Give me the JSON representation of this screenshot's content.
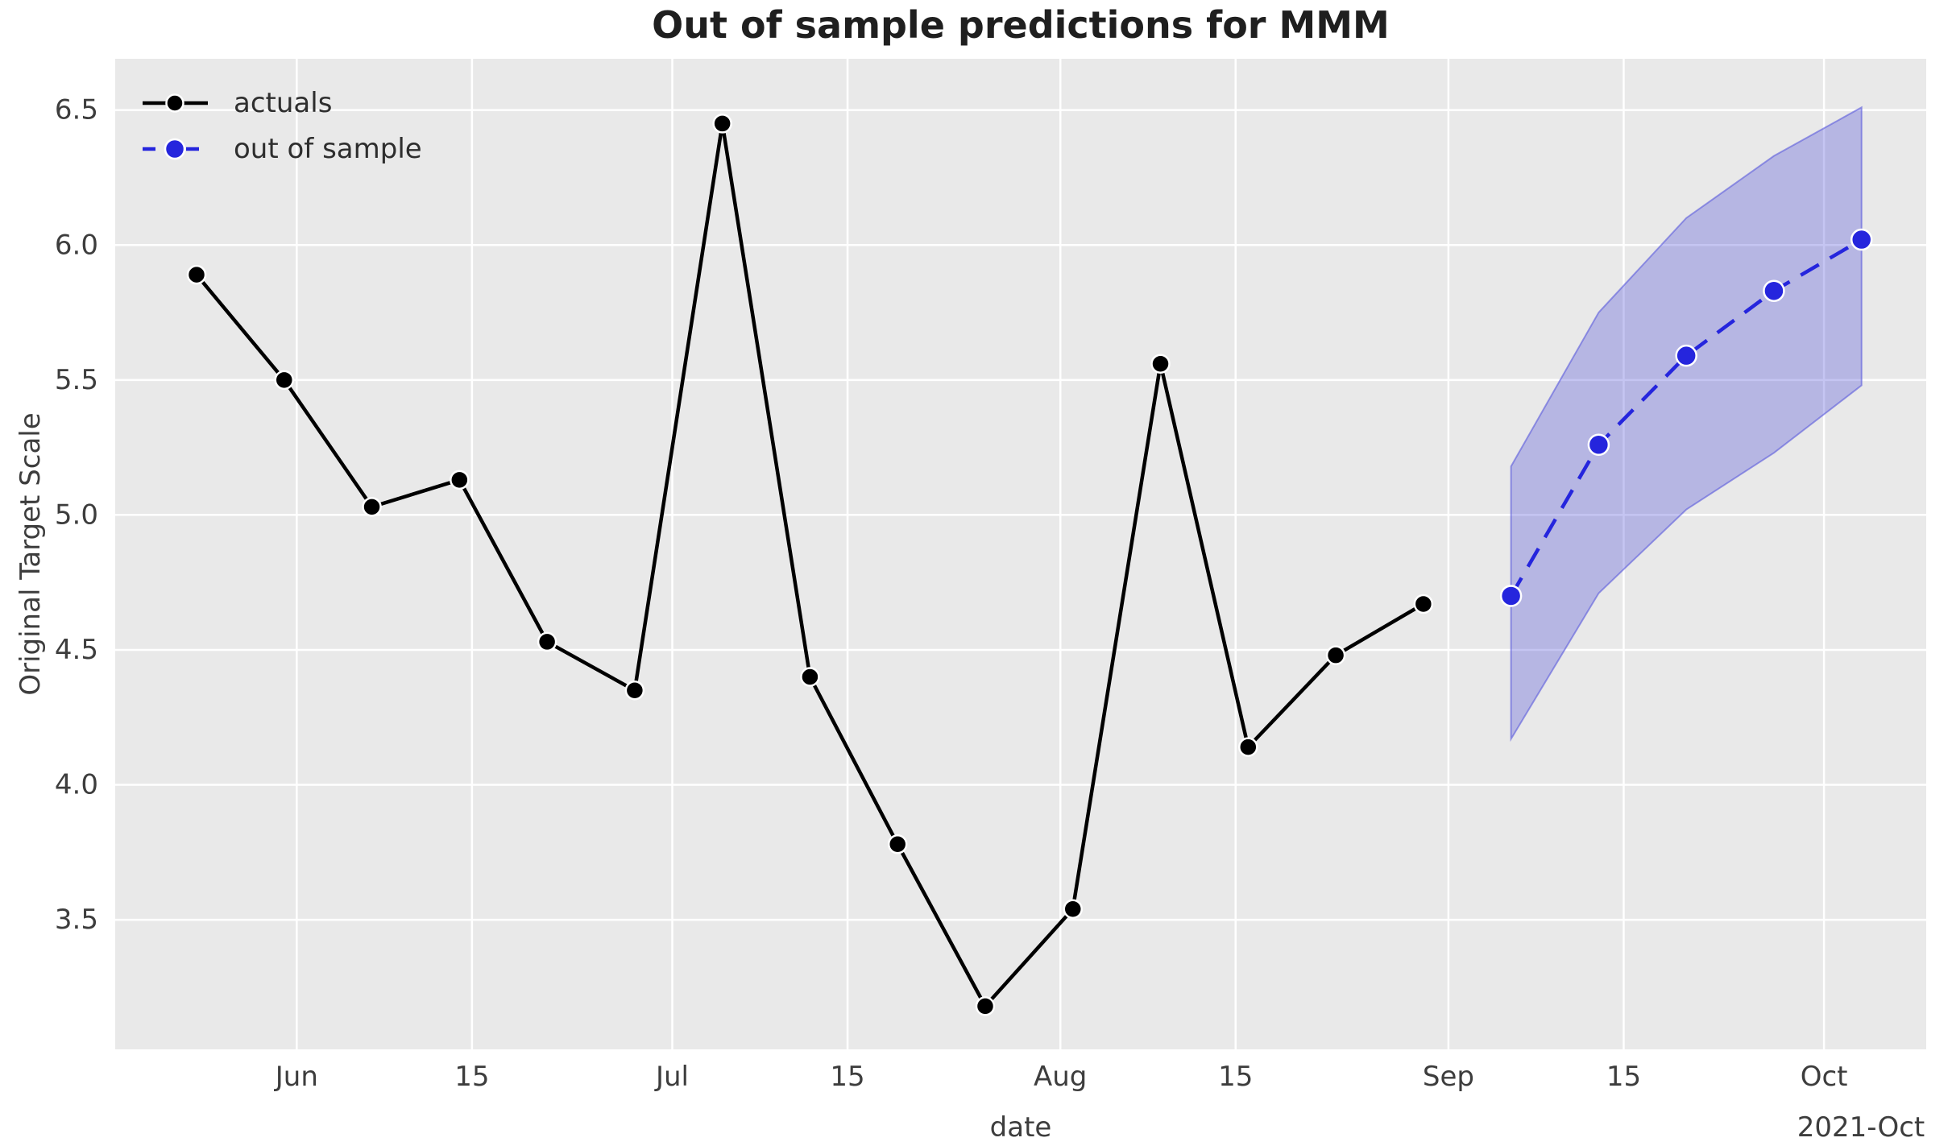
{
  "title": "Out of sample predictions for MMM",
  "chart_data": {
    "type": "line",
    "title": "Out of sample predictions for MMM",
    "xlabel": "date",
    "ylabel": "Original Target Scale",
    "grid": true,
    "plot_background": "#e9e9e9",
    "gridline_color": "#ffffff",
    "x_axis": {
      "domain": [
        "2021-05-17T12:00:00Z",
        "2021-10-09T04:00:00Z"
      ],
      "ticks": [
        {
          "date": "2021-06-01",
          "label": "Jun"
        },
        {
          "date": "2021-06-15",
          "label": "15"
        },
        {
          "date": "2021-07-01",
          "label": "Jul"
        },
        {
          "date": "2021-07-15",
          "label": "15"
        },
        {
          "date": "2021-08-01",
          "label": "Aug"
        },
        {
          "date": "2021-08-15",
          "label": "15"
        },
        {
          "date": "2021-09-01",
          "label": "Sep"
        },
        {
          "date": "2021-09-15",
          "label": "15"
        },
        {
          "date": "2021-10-01",
          "label": "Oct"
        }
      ],
      "offset_label": "2021-Oct"
    },
    "y_axis": {
      "min": 3.02,
      "max": 6.69,
      "ticks": [
        {
          "value": 6.5,
          "label": "6.5"
        },
        {
          "value": 6.0,
          "label": "6.0"
        },
        {
          "value": 5.5,
          "label": "5.5"
        },
        {
          "value": 5.0,
          "label": "5.0"
        },
        {
          "value": 4.5,
          "label": "4.5"
        },
        {
          "value": 4.0,
          "label": "4.0"
        },
        {
          "value": 3.5,
          "label": "3.5"
        }
      ]
    },
    "legend": {
      "position": "upper-left"
    },
    "series": [
      {
        "name": "actuals",
        "color": "#000000",
        "line_style": "solid",
        "dates": [
          "2021-05-24",
          "2021-05-31",
          "2021-06-07",
          "2021-06-14",
          "2021-06-21",
          "2021-06-28",
          "2021-07-05",
          "2021-07-12",
          "2021-07-19",
          "2021-07-26",
          "2021-08-02",
          "2021-08-09",
          "2021-08-16",
          "2021-08-23",
          "2021-08-30"
        ],
        "values": [
          5.89,
          5.5,
          5.03,
          5.13,
          4.53,
          4.35,
          6.45,
          4.4,
          3.78,
          3.18,
          3.54,
          5.56,
          4.14,
          4.48,
          4.67
        ]
      },
      {
        "name": "out of sample",
        "color": "#2525dd",
        "line_style": "dashed",
        "dates": [
          "2021-09-06",
          "2021-09-13",
          "2021-09-20",
          "2021-09-27",
          "2021-10-04"
        ],
        "values": [
          4.7,
          5.26,
          5.59,
          5.83,
          6.02
        ],
        "ci_lower": [
          4.17,
          4.71,
          5.02,
          5.23,
          5.48
        ],
        "ci_upper": [
          5.18,
          5.75,
          6.1,
          6.33,
          6.51
        ],
        "band_fill": "rgba(76,76,214,0.32)",
        "band_edge": "rgba(90,90,220,0.6)"
      }
    ]
  }
}
